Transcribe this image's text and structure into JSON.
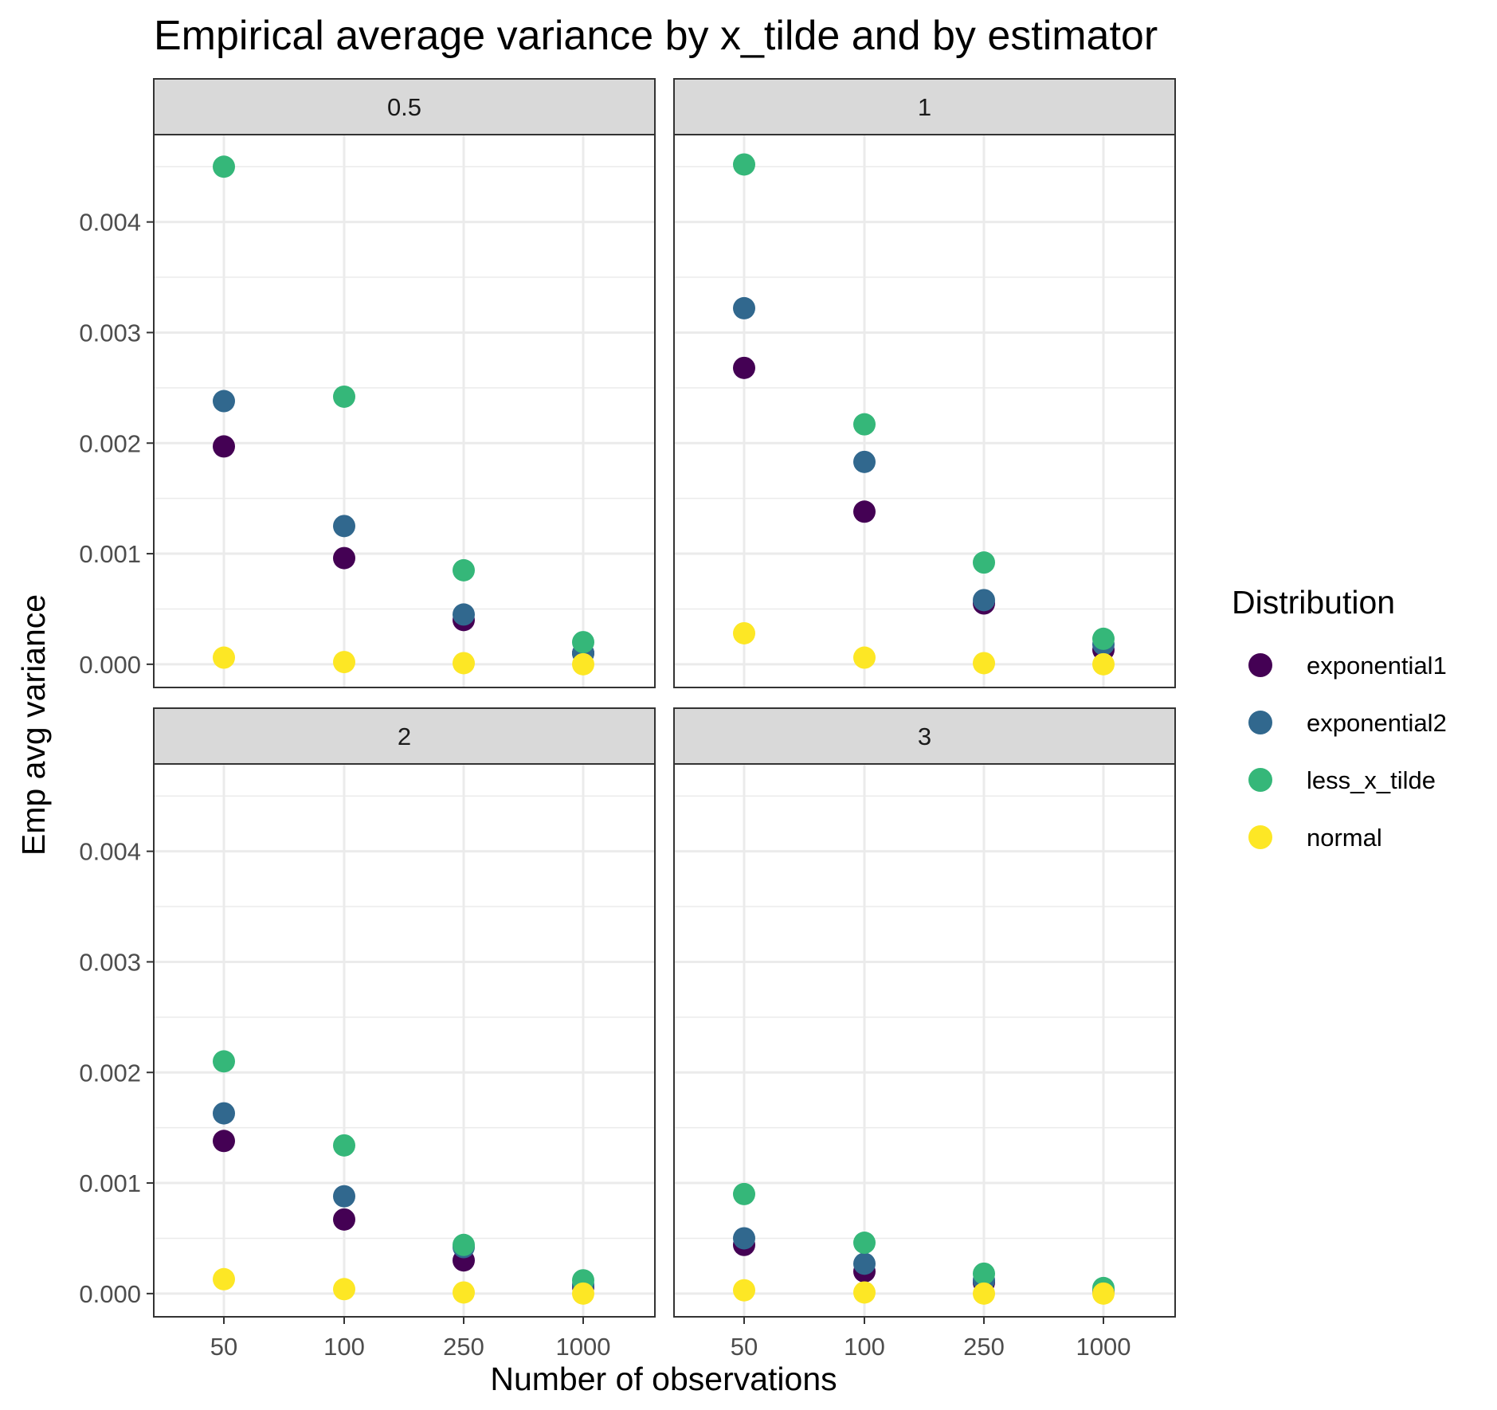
{
  "chart_data": {
    "type": "scatter",
    "title": "Empirical average variance by x_tilde and by estimator",
    "xlabel": "Number of observations",
    "ylabel": "Emp avg variance",
    "categories": [
      "50",
      "100",
      "250",
      "1000"
    ],
    "y_ticks": [
      "0.000",
      "0.001",
      "0.002",
      "0.003",
      "0.004"
    ],
    "ylim": [
      -0.00021,
      0.00479
    ],
    "grid": true,
    "legend": {
      "title": "Distribution",
      "placement": "right",
      "entries": [
        "exponential1",
        "exponential2",
        "less_x_tilde",
        "normal"
      ]
    },
    "series_colors": {
      "exponential1": "#440154",
      "exponential2": "#31688e",
      "less_x_tilde": "#35b779",
      "normal": "#fde725"
    },
    "panels": [
      {
        "label": "0.5",
        "series": [
          {
            "name": "exponential1",
            "values": [
              0.00197,
              0.00096,
              0.0004,
              0.0001
            ]
          },
          {
            "name": "exponential2",
            "values": [
              0.00238,
              0.00125,
              0.00045,
              0.0001
            ]
          },
          {
            "name": "less_x_tilde",
            "values": [
              0.0045,
              0.00242,
              0.00085,
              0.0002
            ]
          },
          {
            "name": "normal",
            "values": [
              6e-05,
              2e-05,
              1e-05,
              0.0
            ]
          }
        ]
      },
      {
        "label": "1",
        "series": [
          {
            "name": "exponential1",
            "values": [
              0.00268,
              0.00138,
              0.00055,
              0.00013
            ]
          },
          {
            "name": "exponential2",
            "values": [
              0.00322,
              0.00183,
              0.00058,
              0.00018
            ]
          },
          {
            "name": "less_x_tilde",
            "values": [
              0.00452,
              0.00217,
              0.00092,
              0.00023
            ]
          },
          {
            "name": "normal",
            "values": [
              0.00028,
              6e-05,
              1e-05,
              0.0
            ]
          }
        ]
      },
      {
        "label": "2",
        "series": [
          {
            "name": "exponential1",
            "values": [
              0.00138,
              0.00067,
              0.0003,
              6e-05
            ]
          },
          {
            "name": "exponential2",
            "values": [
              0.00163,
              0.00088,
              0.00042,
              8e-05
            ]
          },
          {
            "name": "less_x_tilde",
            "values": [
              0.0021,
              0.00134,
              0.00044,
              0.00012
            ]
          },
          {
            "name": "normal",
            "values": [
              0.00013,
              4e-05,
              1e-05,
              0.0
            ]
          }
        ]
      },
      {
        "label": "3",
        "series": [
          {
            "name": "exponential1",
            "values": [
              0.00044,
              0.0002,
              0.0001,
              2e-05
            ]
          },
          {
            "name": "exponential2",
            "values": [
              0.0005,
              0.00027,
              0.00012,
              3e-05
            ]
          },
          {
            "name": "less_x_tilde",
            "values": [
              0.0009,
              0.00046,
              0.00018,
              5e-05
            ]
          },
          {
            "name": "normal",
            "values": [
              3e-05,
              1e-05,
              0.0,
              0.0
            ]
          }
        ]
      }
    ]
  }
}
